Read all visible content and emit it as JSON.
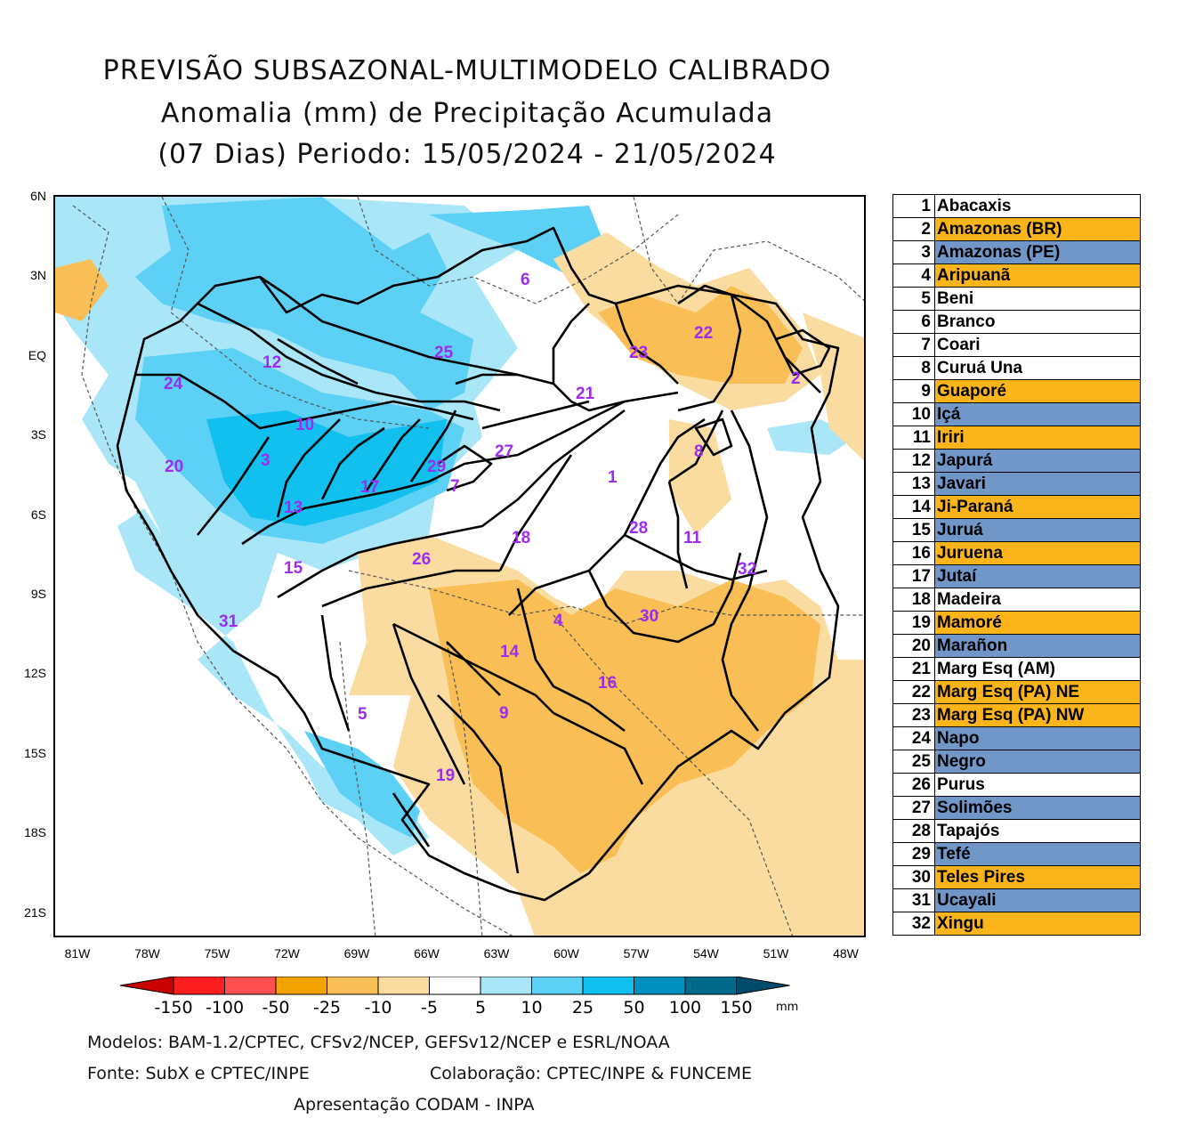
{
  "title": {
    "line1": "PREVISÃO SUBSAZONAL-MULTIMODELO CALIBRADO",
    "line2": "Anomalia (mm) de Precipitação Acumulada",
    "line3": "(07 Dias) Periodo: 15/05/2024 - 21/05/2024"
  },
  "axes": {
    "lat_ticks": [
      "6N",
      "3N",
      "EQ",
      "3S",
      "6S",
      "9S",
      "12S",
      "15S",
      "18S",
      "21S"
    ],
    "lon_ticks": [
      "81W",
      "78W",
      "75W",
      "72W",
      "69W",
      "66W",
      "63W",
      "60W",
      "57W",
      "54W",
      "51W",
      "48W"
    ]
  },
  "basin_numbers": [
    "1",
    "2",
    "3",
    "4",
    "5",
    "6",
    "7",
    "8",
    "9",
    "10",
    "11",
    "12",
    "13",
    "14",
    "15",
    "16",
    "17",
    "18",
    "19",
    "20",
    "21",
    "22",
    "23",
    "24",
    "25",
    "26",
    "27",
    "28",
    "29",
    "30",
    "31",
    "32"
  ],
  "basins": [
    {
      "num": "1",
      "name": "Abacaxis",
      "color": "#ffffff"
    },
    {
      "num": "2",
      "name": "Amazonas (BR)",
      "color": "#fbb51a"
    },
    {
      "num": "3",
      "name": "Amazonas (PE)",
      "color": "#7097c8"
    },
    {
      "num": "4",
      "name": "Aripuanã",
      "color": "#fbb51a"
    },
    {
      "num": "5",
      "name": "Beni",
      "color": "#ffffff"
    },
    {
      "num": "6",
      "name": "Branco",
      "color": "#ffffff"
    },
    {
      "num": "7",
      "name": "Coari",
      "color": "#ffffff"
    },
    {
      "num": "8",
      "name": "Curuá Una",
      "color": "#ffffff"
    },
    {
      "num": "9",
      "name": "Guaporé",
      "color": "#fbb51a"
    },
    {
      "num": "10",
      "name": "Içá",
      "color": "#7097c8"
    },
    {
      "num": "11",
      "name": "Iriri",
      "color": "#fbb51a"
    },
    {
      "num": "12",
      "name": "Japurá",
      "color": "#7097c8"
    },
    {
      "num": "13",
      "name": "Javari",
      "color": "#7097c8"
    },
    {
      "num": "14",
      "name": "Ji-Paraná",
      "color": "#fbb51a"
    },
    {
      "num": "15",
      "name": "Juruá",
      "color": "#7097c8"
    },
    {
      "num": "16",
      "name": "Juruena",
      "color": "#fbb51a"
    },
    {
      "num": "17",
      "name": "Jutaí",
      "color": "#7097c8"
    },
    {
      "num": "18",
      "name": "Madeira",
      "color": "#ffffff"
    },
    {
      "num": "19",
      "name": "Mamoré",
      "color": "#fbb51a"
    },
    {
      "num": "20",
      "name": "Marañon",
      "color": "#7097c8"
    },
    {
      "num": "21",
      "name": "Marg Esq (AM)",
      "color": "#ffffff"
    },
    {
      "num": "22",
      "name": "Marg Esq (PA) NE",
      "color": "#fbb51a"
    },
    {
      "num": "23",
      "name": "Marg Esq (PA) NW",
      "color": "#fbb51a"
    },
    {
      "num": "24",
      "name": "Napo",
      "color": "#7097c8"
    },
    {
      "num": "25",
      "name": "Negro",
      "color": "#7097c8"
    },
    {
      "num": "26",
      "name": "Purus",
      "color": "#ffffff"
    },
    {
      "num": "27",
      "name": "Solimões",
      "color": "#7097c8"
    },
    {
      "num": "28",
      "name": "Tapajós",
      "color": "#ffffff"
    },
    {
      "num": "29",
      "name": "Tefé",
      "color": "#7097c8"
    },
    {
      "num": "30",
      "name": "Teles Pires",
      "color": "#fbb51a"
    },
    {
      "num": "31",
      "name": "Ucayali",
      "color": "#7097c8"
    },
    {
      "num": "32",
      "name": "Xingu",
      "color": "#fbb51a"
    }
  ],
  "colorbar": {
    "labels": [
      "-150",
      "-100",
      "-50",
      "-25",
      "-10",
      "-5",
      "5",
      "10",
      "25",
      "50",
      "100",
      "150"
    ],
    "colors": [
      "#c80000",
      "#ff1e1e",
      "#ff5050",
      "#f5a300",
      "#f9be55",
      "#fbdca0",
      "#ffffff",
      "#a8e6f8",
      "#5cd0f5",
      "#12c0f0",
      "#0090c0",
      "#006a8a",
      "#004a6a"
    ],
    "unit": "mm"
  },
  "footer": {
    "models": "Modelos: BAM-1.2/CPTEC, CFSv2/NCEP, GEFSv12/NCEP e ESRL/NOAA",
    "source": "Fonte: SubX e CPTEC/INPE",
    "collab": "Colaboração: CPTEC/INPE & FUNCEME",
    "presentation": "Apresentação CODAM - INPA"
  },
  "palette": {
    "blue_light": "#a8e6f8",
    "blue_mid": "#5cd0f5",
    "blue_dark": "#12c0f0",
    "orange_light": "#fbdca0",
    "orange_mid": "#f9be55",
    "border": "#000000"
  }
}
